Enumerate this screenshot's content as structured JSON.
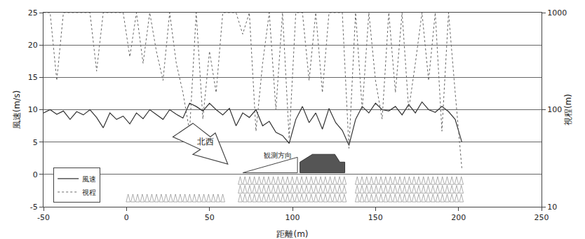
{
  "chart_data": {
    "type": "line",
    "x_label": "距離(m)",
    "y_label": "風速(m/s)",
    "y2_label": "視程(m)",
    "x": [
      -50,
      -46,
      -42,
      -38,
      -34,
      -30,
      -26,
      -22,
      -18,
      -14,
      -10,
      -6,
      -2,
      2,
      6,
      10,
      14,
      18,
      22,
      26,
      30,
      34,
      38,
      42,
      46,
      50,
      54,
      58,
      62,
      66,
      70,
      74,
      78,
      82,
      86,
      90,
      94,
      98,
      102,
      106,
      110,
      114,
      118,
      122,
      126,
      130,
      134,
      138,
      142,
      146,
      150,
      154,
      158,
      162,
      166,
      170,
      174,
      178,
      182,
      186,
      190,
      194,
      198,
      202
    ],
    "series": [
      {
        "name": "風速",
        "color": "#333333",
        "line_style": "solid",
        "axis": "y",
        "values": [
          9.5,
          10,
          9.3,
          9.8,
          8.5,
          9.7,
          9.2,
          10,
          8.8,
          7.2,
          9.5,
          8.5,
          9,
          7.8,
          9.5,
          8.6,
          10,
          9.2,
          8.5,
          10,
          9.3,
          8.7,
          11,
          10.5,
          9.8,
          11,
          10,
          9.2,
          10.2,
          7.5,
          9.5,
          8.8,
          10,
          7.5,
          8.2,
          6.5,
          6,
          4.8,
          8.5,
          10.5,
          8,
          9.5,
          7,
          10.2,
          8,
          6.8,
          4.5,
          8.5,
          10.5,
          9.5,
          11,
          10,
          9.8,
          10.5,
          9.2,
          10.8,
          9.5,
          11.2,
          10,
          9.6,
          10.5,
          9.7,
          8.5,
          5
        ]
      },
      {
        "name": "視程",
        "color": "#666666",
        "line_style": "dotted",
        "axis": "y2",
        "values": [
          1000,
          1000,
          200,
          1000,
          1000,
          1000,
          1000,
          1000,
          250,
          1000,
          1000,
          1000,
          1000,
          350,
          1000,
          300,
          1000,
          400,
          200,
          1000,
          300,
          150,
          60,
          1000,
          80,
          400,
          150,
          1000,
          1000,
          1000,
          600,
          1000,
          60,
          300,
          1000,
          100,
          1000,
          50,
          1000,
          1000,
          200,
          1000,
          150,
          1000,
          1000,
          1000,
          40,
          1000,
          100,
          1000,
          200,
          80,
          1000,
          150,
          1000,
          100,
          300,
          1000,
          200,
          1000,
          60,
          1000,
          150,
          25
        ]
      }
    ],
    "xlim": [
      -50,
      250
    ],
    "xticks": [
      -50,
      0,
      50,
      100,
      150,
      200,
      250
    ],
    "ylim": [
      -5,
      25
    ],
    "yticks": [
      -5,
      0,
      5,
      10,
      15,
      20,
      25
    ],
    "y2lim": [
      10,
      1000
    ],
    "y2ticks": [
      10,
      100,
      1000
    ],
    "log": "y2",
    "grid": true,
    "legend": "lower left",
    "annotations": [
      "北西",
      "観測方向"
    ]
  }
}
